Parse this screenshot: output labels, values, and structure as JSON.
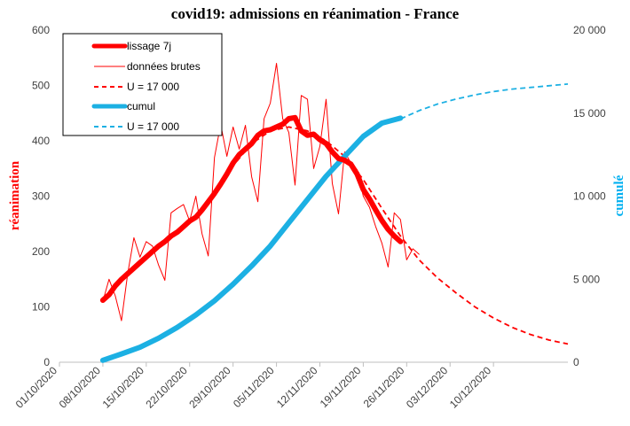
{
  "colors": {
    "red": "#ff0000",
    "blue": "#1cb0e3",
    "axis": "#bfbfbf",
    "text": "#404040"
  },
  "chart_data": {
    "type": "line",
    "title": "covid19: admissions en réanimation - France",
    "ylabel": "réanimation",
    "y2label": "cumulé",
    "ylim": [
      0,
      600
    ],
    "y2lim": [
      0,
      20000
    ],
    "xlim": [
      "2020-10-01",
      "2020-12-22"
    ],
    "grid": false,
    "legend_position": "top-left",
    "y_ticks": [
      "0",
      "100",
      "200",
      "300",
      "400",
      "500",
      "600"
    ],
    "y2_ticks": [
      "0",
      "5 000",
      "10 000",
      "15 000",
      "20 000"
    ],
    "x_ticks": [
      "01/10/2020",
      "08/10/2020",
      "15/10/2020",
      "22/10/2020",
      "29/10/2020",
      "05/11/2020",
      "12/11/2020",
      "19/11/2020",
      "26/11/2020",
      "03/12/2020",
      "10/12/2020"
    ],
    "x_tick_dates": [
      "2020-10-01",
      "2020-10-08",
      "2020-10-15",
      "2020-10-22",
      "2020-10-29",
      "2020-11-05",
      "2020-11-12",
      "2020-11-19",
      "2020-11-26",
      "2020-12-03",
      "2020-12-10"
    ],
    "series": [
      {
        "name": "lissage 7j",
        "axis": "left",
        "style": "thick",
        "x": [
          "2020-10-08",
          "2020-10-09",
          "2020-10-10",
          "2020-10-11",
          "2020-10-12",
          "2020-10-13",
          "2020-10-14",
          "2020-10-15",
          "2020-10-16",
          "2020-10-17",
          "2020-10-18",
          "2020-10-19",
          "2020-10-20",
          "2020-10-21",
          "2020-10-22",
          "2020-10-23",
          "2020-10-24",
          "2020-10-25",
          "2020-10-26",
          "2020-10-27",
          "2020-10-28",
          "2020-10-29",
          "2020-10-30",
          "2020-10-31",
          "2020-11-01",
          "2020-11-02",
          "2020-11-03",
          "2020-11-04",
          "2020-11-05",
          "2020-11-06",
          "2020-11-07",
          "2020-11-08",
          "2020-11-09",
          "2020-11-10",
          "2020-11-11",
          "2020-11-12",
          "2020-11-13",
          "2020-11-14",
          "2020-11-15",
          "2020-11-16",
          "2020-11-17",
          "2020-11-18",
          "2020-11-19",
          "2020-11-20",
          "2020-11-21",
          "2020-11-22",
          "2020-11-23",
          "2020-11-24",
          "2020-11-25"
        ],
        "values": [
          112,
          122,
          138,
          150,
          160,
          170,
          180,
          190,
          200,
          210,
          218,
          228,
          235,
          245,
          255,
          262,
          275,
          290,
          305,
          322,
          340,
          360,
          375,
          385,
          395,
          410,
          418,
          420,
          425,
          430,
          440,
          442,
          418,
          410,
          412,
          402,
          395,
          380,
          368,
          365,
          358,
          340,
          312,
          295,
          275,
          256,
          240,
          228,
          218
        ]
      },
      {
        "name": "données brutes",
        "axis": "left",
        "style": "thin",
        "x": [
          "2020-10-08",
          "2020-10-09",
          "2020-10-10",
          "2020-10-11",
          "2020-10-12",
          "2020-10-13",
          "2020-10-14",
          "2020-10-15",
          "2020-10-16",
          "2020-10-17",
          "2020-10-18",
          "2020-10-19",
          "2020-10-20",
          "2020-10-21",
          "2020-10-22",
          "2020-10-23",
          "2020-10-24",
          "2020-10-25",
          "2020-10-26",
          "2020-10-27",
          "2020-10-28",
          "2020-10-29",
          "2020-10-30",
          "2020-10-31",
          "2020-11-01",
          "2020-11-02",
          "2020-11-03",
          "2020-11-04",
          "2020-11-05",
          "2020-11-06",
          "2020-11-07",
          "2020-11-08",
          "2020-11-09",
          "2020-11-10",
          "2020-11-11",
          "2020-11-12",
          "2020-11-13",
          "2020-11-14",
          "2020-11-15",
          "2020-11-16",
          "2020-11-17",
          "2020-11-18",
          "2020-11-19",
          "2020-11-20",
          "2020-11-21",
          "2020-11-22",
          "2020-11-23",
          "2020-11-24",
          "2020-11-25",
          "2020-11-26",
          "2020-11-27",
          "2020-11-28"
        ],
        "values": [
          110,
          150,
          120,
          75,
          160,
          225,
          190,
          218,
          210,
          175,
          148,
          270,
          278,
          285,
          255,
          300,
          232,
          192,
          370,
          430,
          372,
          425,
          385,
          428,
          335,
          290,
          440,
          468,
          540,
          440,
          415,
          320,
          482,
          475,
          350,
          390,
          475,
          323,
          268,
          380,
          360,
          348,
          300,
          280,
          245,
          215,
          172,
          270,
          258,
          185,
          205,
          195
        ]
      },
      {
        "name": "U = 17 000",
        "axis": "left",
        "style": "dashed",
        "x": [
          "2020-10-08",
          "2020-10-11",
          "2020-10-14",
          "2020-10-17",
          "2020-10-20",
          "2020-10-23",
          "2020-10-26",
          "2020-10-29",
          "2020-11-01",
          "2020-11-04",
          "2020-11-07",
          "2020-11-10",
          "2020-11-13",
          "2020-11-16",
          "2020-11-19",
          "2020-11-22",
          "2020-11-25",
          "2020-11-28",
          "2020-12-01",
          "2020-12-04",
          "2020-12-07",
          "2020-12-10",
          "2020-12-13",
          "2020-12-16",
          "2020-12-19",
          "2020-12-22"
        ],
        "values": [
          110,
          148,
          180,
          210,
          235,
          265,
          305,
          355,
          395,
          418,
          425,
          418,
          400,
          372,
          330,
          278,
          228,
          185,
          152,
          125,
          100,
          80,
          63,
          50,
          40,
          33
        ]
      },
      {
        "name": "cumul",
        "axis": "right",
        "style": "thick",
        "x": [
          "2020-10-08",
          "2020-10-11",
          "2020-10-14",
          "2020-10-17",
          "2020-10-20",
          "2020-10-23",
          "2020-10-26",
          "2020-10-29",
          "2020-11-01",
          "2020-11-04",
          "2020-11-07",
          "2020-11-10",
          "2020-11-13",
          "2020-11-16",
          "2020-11-19",
          "2020-11-22",
          "2020-11-25"
        ],
        "values": [
          120,
          500,
          900,
          1450,
          2100,
          2850,
          3700,
          4700,
          5800,
          7000,
          8400,
          9800,
          11200,
          12400,
          13600,
          14400,
          14700
        ]
      },
      {
        "name": "U = 17 000",
        "axis": "right",
        "style": "dashed",
        "x": [
          "2020-11-25",
          "2020-11-28",
          "2020-12-01",
          "2020-12-04",
          "2020-12-07",
          "2020-12-10",
          "2020-12-13",
          "2020-12-16",
          "2020-12-19",
          "2020-12-22"
        ],
        "values": [
          14650,
          15150,
          15550,
          15850,
          16100,
          16300,
          16450,
          16550,
          16650,
          16750
        ]
      }
    ]
  }
}
